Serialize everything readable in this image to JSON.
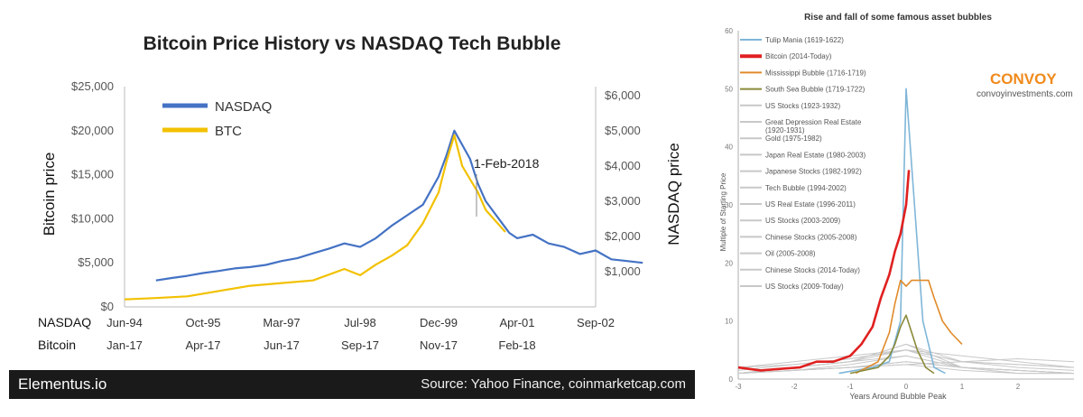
{
  "chart_data": [
    {
      "type": "line",
      "title": "Bitcoin Price History vs NASDAQ Tech Bubble",
      "ylabel": "Bitcoin price",
      "ylabel_right": "NASDAQ price",
      "ylim": [
        0,
        25000
      ],
      "ylim_right": [
        0,
        6250
      ],
      "yticks": [
        "$0",
        "$5,000",
        "$10,000",
        "$15,000",
        "$20,000",
        "$25,000"
      ],
      "yticks_right": [
        "$1,000",
        "$2,000",
        "$3,000",
        "$4,000",
        "$5,000",
        "$6,000"
      ],
      "yticks_right_values": [
        1000,
        2000,
        3000,
        4000,
        5000,
        6000
      ],
      "x_row_labels": [
        "NASDAQ",
        "Bitcoin"
      ],
      "x_ticks_nasdaq": [
        "Jun-94",
        "Oct-95",
        "Mar-97",
        "Jul-98",
        "Dec-99",
        "Apr-01",
        "Sep-02"
      ],
      "x_ticks_bitcoin": [
        "Jan-17",
        "Apr-17",
        "Jun-17",
        "Sep-17",
        "Nov-17",
        "Feb-18"
      ],
      "x_ticks_bitcoin_pos": [
        0,
        1,
        2,
        3,
        4,
        5
      ],
      "annotation": "1-Feb-2018",
      "legend": "top-left",
      "series": [
        {
          "name": "NASDAQ",
          "color": "#4472c4",
          "x": [
            0.4,
            0.6,
            0.8,
            1.0,
            1.2,
            1.4,
            1.6,
            1.8,
            2.0,
            2.2,
            2.4,
            2.6,
            2.8,
            3.0,
            3.2,
            3.4,
            3.6,
            3.8,
            4.0,
            4.1,
            4.2,
            4.3,
            4.4,
            4.5,
            4.6,
            4.7,
            4.8,
            4.9,
            5.0,
            5.2,
            5.4,
            5.6,
            5.8,
            6.0,
            6.2,
            6.4,
            6.6
          ],
          "values": [
            750,
            820,
            880,
            960,
            1020,
            1090,
            1130,
            1190,
            1300,
            1380,
            1520,
            1650,
            1800,
            1700,
            1950,
            2300,
            2600,
            2900,
            3700,
            4300,
            5000,
            4600,
            4200,
            3500,
            3000,
            2700,
            2400,
            2100,
            1950,
            2050,
            1800,
            1700,
            1500,
            1600,
            1350,
            1300,
            1250
          ]
        },
        {
          "name": "BTC",
          "color": "#f2c100",
          "x": [
            0.0,
            0.4,
            0.8,
            1.2,
            1.6,
            2.0,
            2.4,
            2.8,
            3.0,
            3.2,
            3.4,
            3.6,
            3.8,
            4.0,
            4.1,
            4.2,
            4.3,
            4.4,
            4.5,
            4.6,
            4.75,
            4.85
          ],
          "values": [
            850,
            1000,
            1200,
            1800,
            2400,
            2700,
            3000,
            4300,
            3600,
            4800,
            5800,
            7000,
            9500,
            13000,
            16500,
            19500,
            16000,
            14500,
            13000,
            11000,
            9500,
            8500
          ]
        }
      ]
    },
    {
      "type": "line",
      "title": "Rise and fall of some famous asset bubbles",
      "xlabel": "Years Around Bubble Peak",
      "ylabel": "Multiple of Starting Price",
      "xlim": [
        -3,
        3
      ],
      "ylim": [
        0,
        60
      ],
      "xticks": [
        "-3",
        "-2",
        "-1",
        "0",
        "1",
        "2"
      ],
      "xticks_values": [
        -3,
        -2,
        -1,
        0,
        1,
        2
      ],
      "yticks": [
        "0",
        "10",
        "20",
        "30",
        "40",
        "50",
        "60"
      ],
      "yticks_values": [
        0,
        10,
        20,
        30,
        40,
        50,
        60
      ],
      "legend": "top-left",
      "brand": "CONVOY",
      "brand_url": "convoyinvestments.com",
      "series": [
        {
          "name": "Tulip Mania (1619-1622)",
          "color": "#7fb6d8",
          "x": [
            -1.2,
            -0.6,
            -0.3,
            -0.1,
            0.0,
            0.15,
            0.3,
            0.5,
            0.7
          ],
          "values": [
            1,
            2,
            3,
            10,
            50,
            30,
            10,
            2,
            1
          ]
        },
        {
          "name": "Bitcoin (2014-Today)",
          "color": "#e02020",
          "x": [
            -3,
            -2.6,
            -2.2,
            -1.9,
            -1.6,
            -1.3,
            -1.0,
            -0.8,
            -0.6,
            -0.45,
            -0.3,
            -0.2,
            -0.1,
            0.0,
            0.05
          ],
          "values": [
            2,
            1.5,
            1.8,
            2,
            3,
            3,
            4,
            6,
            9,
            14,
            18,
            22,
            25,
            30,
            36
          ]
        },
        {
          "name": "Mississippi Bubble (1716-1719)",
          "color": "#e08a2a",
          "x": [
            -0.9,
            -0.5,
            -0.3,
            -0.2,
            -0.1,
            0.0,
            0.1,
            0.25,
            0.4,
            0.5,
            0.65,
            0.8,
            0.9,
            1.0
          ],
          "values": [
            1,
            3,
            8,
            13,
            17,
            16,
            17,
            17,
            17,
            14,
            10,
            8,
            7,
            6
          ]
        },
        {
          "name": "South Sea Bubble (1719-1722)",
          "color": "#8a8a3a",
          "x": [
            -1.0,
            -0.5,
            -0.3,
            -0.2,
            -0.1,
            0.0,
            0.1,
            0.2,
            0.35,
            0.5
          ],
          "values": [
            1,
            2,
            4,
            6,
            9,
            11,
            8,
            5,
            2,
            1
          ]
        },
        {
          "name": "US Stocks (1923-1932)",
          "color": "#c8c8c8",
          "x": [
            -3,
            -2,
            -1,
            0,
            1,
            2,
            3
          ],
          "values": [
            1,
            1.5,
            2.5,
            4,
            2,
            1,
            1
          ]
        },
        {
          "name": "Great Depression Real Estate (1920-1931)",
          "color": "#c8c8c8",
          "x": [
            -3,
            -2,
            -1,
            0,
            1,
            2,
            3
          ],
          "values": [
            2,
            2.5,
            3.5,
            5,
            3,
            2,
            1.5
          ]
        },
        {
          "name": "Gold (1975-1982)",
          "color": "#c8c8c8",
          "x": [
            -3,
            -2,
            -1,
            0,
            1,
            2,
            3
          ],
          "values": [
            1,
            2,
            3,
            6,
            3,
            2.5,
            2
          ]
        },
        {
          "name": "Japan Real Estate (1980-2003)",
          "color": "#c8c8c8",
          "x": [
            -3,
            -2,
            -1,
            0,
            1,
            2,
            3
          ],
          "values": [
            2,
            3,
            4,
            5,
            4,
            3,
            2
          ]
        },
        {
          "name": "Japanese Stocks (1982-1992)",
          "color": "#c8c8c8",
          "x": [
            -3,
            -2,
            -1,
            0,
            1,
            2,
            3
          ],
          "values": [
            1.5,
            2.5,
            3.5,
            5,
            3,
            2.5,
            2
          ]
        },
        {
          "name": "Tech Bubble (1994-2002)",
          "color": "#c8c8c8",
          "x": [
            -3,
            -2,
            -1,
            0,
            1,
            2,
            3
          ],
          "values": [
            1,
            2,
            3,
            5,
            2,
            1.5,
            1
          ]
        },
        {
          "name": "US Real Estate (1996-2011)",
          "color": "#c8c8c8",
          "x": [
            -3,
            -2,
            -1,
            0,
            1,
            2,
            3
          ],
          "values": [
            1,
            1.5,
            2,
            3,
            2,
            1.5,
            1
          ]
        },
        {
          "name": "US Stocks (2003-2009)",
          "color": "#c8c8c8",
          "x": [
            -3,
            -2,
            -1,
            0,
            1,
            2,
            3
          ],
          "values": [
            1,
            1.5,
            2,
            2.5,
            1.5,
            1,
            1
          ]
        },
        {
          "name": "Chinese Stocks (2005-2008)",
          "color": "#c8c8c8",
          "x": [
            -3,
            -2,
            -1,
            0,
            1,
            2,
            3
          ],
          "values": [
            1,
            2,
            3,
            6,
            2,
            1.5,
            1
          ]
        },
        {
          "name": "Oil (2005-2008)",
          "color": "#c8c8c8",
          "x": [
            -3,
            -2,
            -1,
            0,
            1,
            2,
            3
          ],
          "values": [
            1,
            2,
            3,
            4,
            2,
            1.5,
            1
          ]
        },
        {
          "name": "Chinese Stocks (2014-Today)",
          "color": "#c8c8c8",
          "x": [
            -3,
            -2,
            -1,
            0,
            1,
            2,
            3
          ],
          "values": [
            1,
            1.5,
            2,
            3,
            2,
            1.5,
            1
          ]
        },
        {
          "name": "US Stocks (2009-Today)",
          "color": "#c8c8c8",
          "x": [
            -3,
            -2,
            -1,
            0,
            1,
            2,
            3
          ],
          "values": [
            1,
            1.5,
            2,
            2.5,
            3,
            3.5,
            3
          ]
        }
      ]
    }
  ],
  "footer": {
    "brand": "Elementus.io",
    "source": "Source: Yahoo Finance, coinmarketcap.com"
  }
}
